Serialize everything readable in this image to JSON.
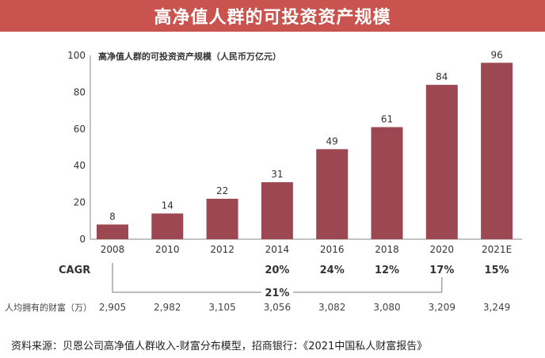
{
  "title": "高净值人群的可投资资产规模",
  "source_note": "资料来源：贝恩公司高净值人群收入-财富分布模型，招商银行：《2021中国私人财富报告》",
  "colors": {
    "bar": "#9d4753",
    "title_bg": "#c9544f"
  },
  "chart_data": {
    "type": "bar",
    "title": "高净值人群的可投资资产规模（人民币万亿元）",
    "categories": [
      "2008",
      "2010",
      "2012",
      "2014",
      "2016",
      "2018",
      "2020",
      "2021E"
    ],
    "values": [
      8,
      14,
      22,
      31,
      49,
      61,
      84,
      96
    ],
    "ylim": [
      0,
      100
    ],
    "yticks": [
      "0",
      "20",
      "40",
      "60",
      "80",
      "100"
    ],
    "xlabel": "",
    "ylabel": "",
    "grid": false,
    "cagr": {
      "label": "CAGR",
      "values": [
        "",
        "",
        "",
        "20%",
        "24%",
        "12%",
        "17%",
        "15%"
      ],
      "overall": "21%"
    },
    "wealth_per_capita": {
      "label": "人均拥有的财富（万）",
      "values": [
        "2,905",
        "2,982",
        "3,105",
        "3,056",
        "3,082",
        "3,080",
        "3,209",
        "3,249"
      ]
    }
  }
}
